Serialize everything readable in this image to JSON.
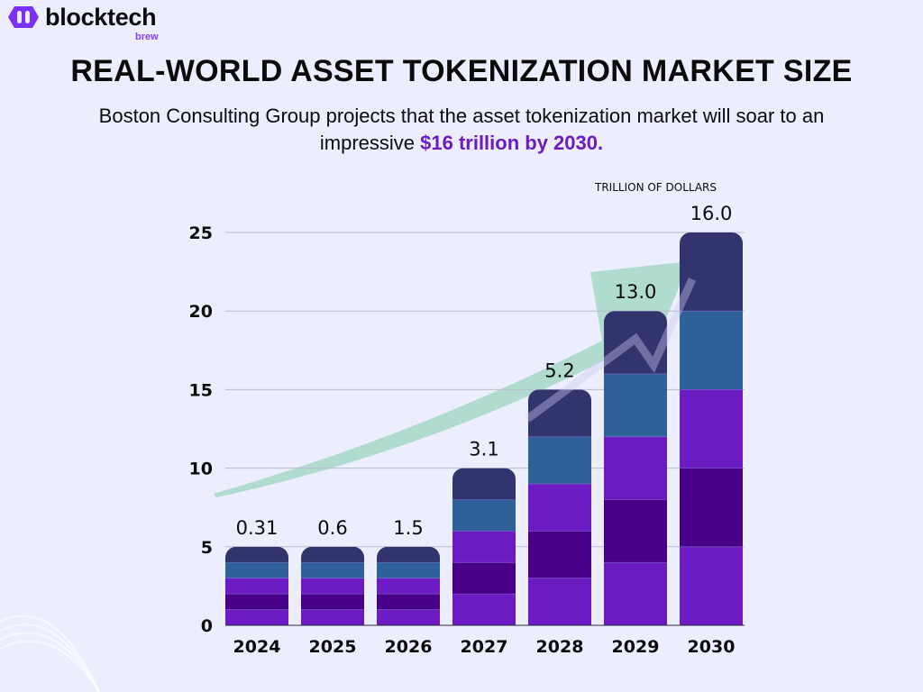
{
  "brand": {
    "name": "blocktech",
    "sub": "brew",
    "color": "#7b2ff7"
  },
  "title": "REAL-WORLD ASSET TOKENIZATION MARKET SIZE",
  "subtitle": {
    "text": "Boston Consulting Group projects that the asset tokenization market will soar to an impressive ",
    "highlight": "$16 trillion by 2030."
  },
  "colors": {
    "background": "#eceefe",
    "highlight": "#6c1bc2",
    "arrow": "#9fd6c2"
  },
  "chart_data": {
    "type": "bar",
    "stacked": true,
    "unit_label": "TRILLION OF DOLLARS",
    "categories": [
      "2024",
      "2025",
      "2026",
      "2027",
      "2028",
      "2029",
      "2030"
    ],
    "value_labels": [
      "0.31",
      "0.6",
      "1.5",
      "3.1",
      "5.2",
      "13.0",
      "16.0"
    ],
    "values": [
      0.31,
      0.6,
      1.5,
      3.1,
      5.2,
      13.0,
      16.0
    ],
    "drawn_heights": [
      5,
      5,
      5,
      10,
      15,
      20,
      25
    ],
    "segments_per_bar": 5,
    "segment_colors": [
      "#6c1bc2",
      "#470087",
      "#6c1bc2",
      "#2e6099",
      "#31346d"
    ],
    "ylim": [
      0,
      25
    ],
    "yticks": [
      "0",
      "5",
      "10",
      "15",
      "20",
      "25"
    ],
    "grid": true,
    "trend_arrow": true
  }
}
